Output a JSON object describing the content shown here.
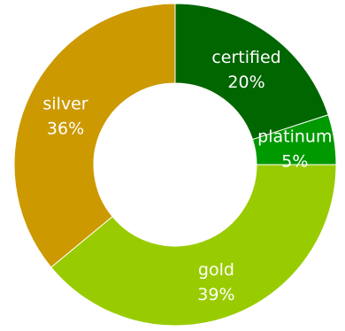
{
  "chart_data": {
    "type": "pie",
    "variant": "donut",
    "categories": [
      "certified",
      "platinum",
      "gold",
      "silver"
    ],
    "values": [
      20,
      5,
      39,
      36
    ],
    "labels": [
      "20%",
      "5%",
      "39%",
      "36%"
    ],
    "colors": [
      "#006600",
      "#009900",
      "#99cc00",
      "#cc9900"
    ],
    "legend": "none",
    "start_angle": "top, clockwise"
  }
}
